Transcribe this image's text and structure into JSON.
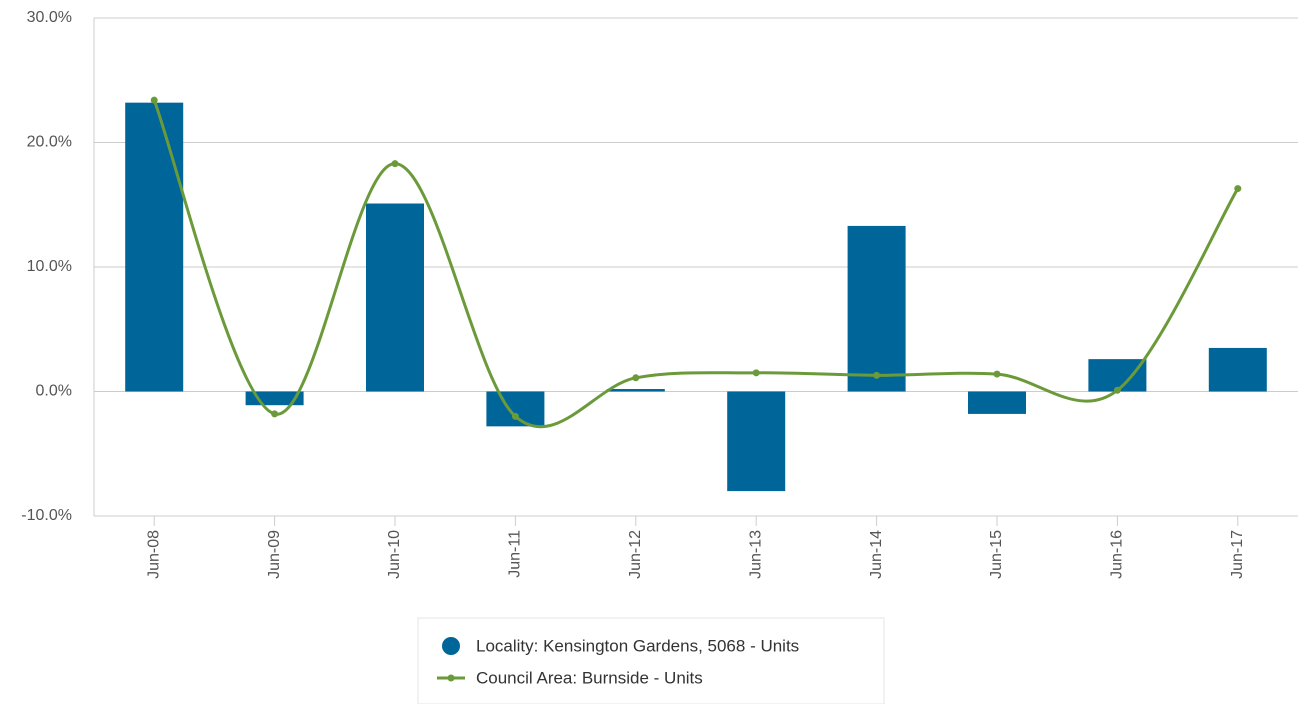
{
  "chart_data": {
    "type": "bar_line",
    "categories": [
      "Jun-08",
      "Jun-09",
      "Jun-10",
      "Jun-11",
      "Jun-12",
      "Jun-13",
      "Jun-14",
      "Jun-15",
      "Jun-16",
      "Jun-17"
    ],
    "series": [
      {
        "name": "Locality: Kensington Gardens, 5068 - Units",
        "type": "bar",
        "color": "#006699",
        "values": [
          23.2,
          -1.1,
          15.1,
          -2.8,
          0.2,
          -8.0,
          13.3,
          -1.8,
          2.6,
          3.5
        ]
      },
      {
        "name": "Council Area: Burnside - Units",
        "type": "line",
        "color": "#6b9a3a",
        "values": [
          23.4,
          -1.8,
          18.3,
          -2.0,
          1.1,
          1.5,
          1.3,
          1.4,
          0.1,
          16.3
        ]
      }
    ],
    "ylim": [
      -10,
      30
    ],
    "yticks": [
      {
        "value": -10,
        "label": "-10.0%"
      },
      {
        "value": 0,
        "label": "0.0%"
      },
      {
        "value": 10,
        "label": "10.0%"
      },
      {
        "value": 20,
        "label": "20.0%"
      },
      {
        "value": 30,
        "label": "30.0%"
      }
    ],
    "grid": true,
    "legend": "bottom"
  }
}
